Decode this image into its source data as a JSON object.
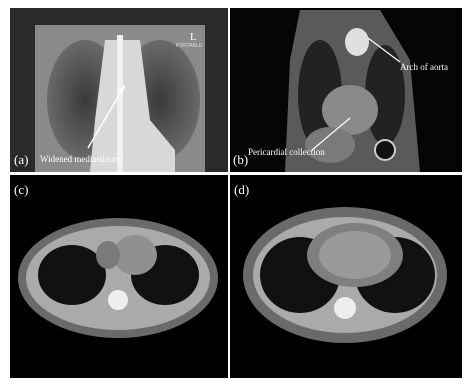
{
  "panels": [
    {
      "label": "(a)",
      "annotation": "Widened mediastinum",
      "marker": "L",
      "marker_caption": "PORTABLE"
    },
    {
      "label": "(b)",
      "annotations": [
        "Arch of aorta",
        "Pericardial collection"
      ]
    },
    {
      "label": "(c)"
    },
    {
      "label": "(d)"
    }
  ]
}
